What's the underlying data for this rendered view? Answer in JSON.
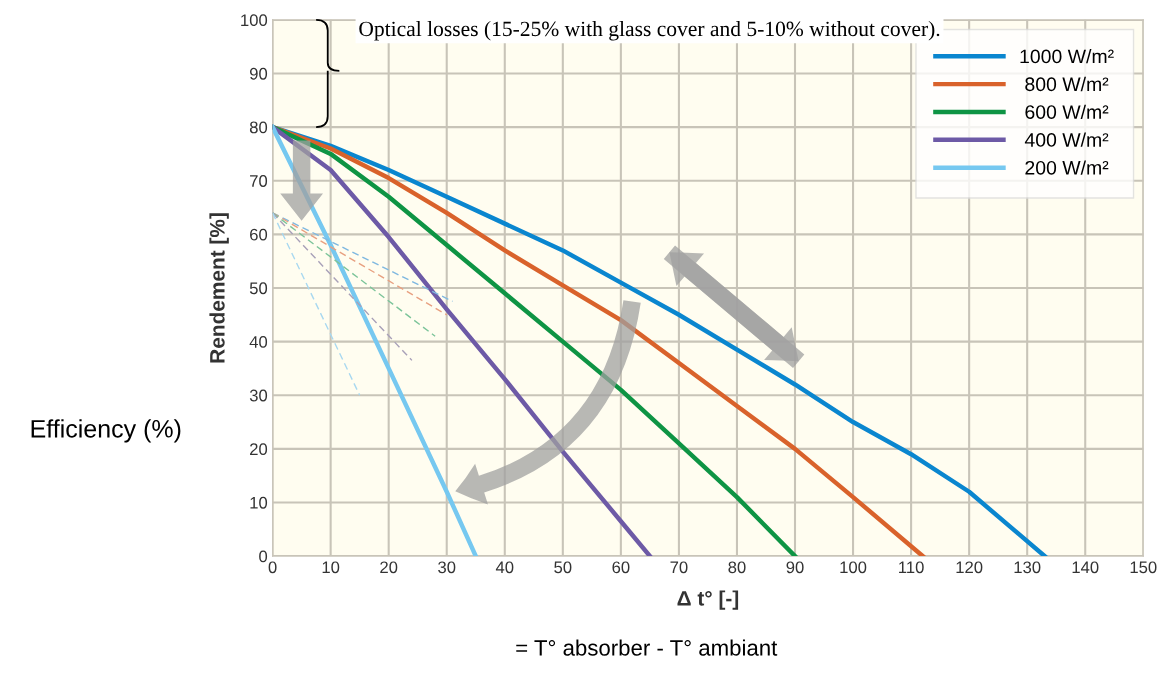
{
  "chart_data": {
    "type": "line",
    "xlabel": "Δ t° [-]",
    "ylabel": "Rendement [%]",
    "xlim": [
      0,
      150
    ],
    "ylim": [
      0,
      100
    ],
    "xticks": [
      0,
      10,
      20,
      30,
      40,
      50,
      60,
      70,
      80,
      90,
      100,
      110,
      120,
      130,
      140,
      150
    ],
    "yticks": [
      0,
      10,
      20,
      30,
      40,
      50,
      60,
      70,
      80,
      90,
      100
    ],
    "grid": true,
    "legend": "top right",
    "marker": "none",
    "line_style": "solid",
    "series": [
      {
        "name": "1000 W/m²",
        "color": "#0a86cf",
        "x": [
          0,
          10,
          20,
          30,
          40,
          50,
          60,
          70,
          80,
          90,
          100,
          110,
          120,
          133
        ],
        "values": [
          80,
          76.5,
          72,
          67,
          62,
          57,
          51,
          45,
          38.5,
          32,
          25,
          19,
          12,
          0
        ]
      },
      {
        "name": " 800 W/m²",
        "color": "#d9622b",
        "x": [
          0,
          10,
          20,
          30,
          40,
          50,
          60,
          70,
          80,
          90,
          100,
          112
        ],
        "values": [
          80,
          76,
          70.5,
          64,
          57,
          50.5,
          44,
          36,
          28,
          20,
          11,
          0
        ]
      },
      {
        "name": " 600 W/m²",
        "color": "#0e9444",
        "x": [
          0,
          10,
          20,
          30,
          40,
          50,
          60,
          70,
          80,
          90
        ],
        "values": [
          80,
          75,
          67,
          58,
          49,
          40,
          31,
          21,
          11,
          0
        ]
      },
      {
        "name": " 400 W/m²",
        "color": "#6d5aa6",
        "x": [
          0,
          10,
          20,
          30,
          40,
          50,
          60,
          65
        ],
        "values": [
          80,
          72,
          59.5,
          46,
          33,
          19.5,
          6.5,
          0
        ]
      },
      {
        "name": " 200 W/m²",
        "color": "#76c8f0",
        "x": [
          0,
          10,
          20,
          30,
          35
        ],
        "values": [
          80,
          58,
          35,
          12,
          0
        ]
      },
      {
        "color": "#7fb8e0",
        "line_style": "dashed",
        "x": [
          0,
          31
        ],
        "values": [
          64,
          47.5
        ]
      },
      {
        "color": "#e8a080",
        "line_style": "dashed",
        "x": [
          0,
          30
        ],
        "values": [
          64,
          45
        ]
      },
      {
        "color": "#7cc49a",
        "line_style": "dashed",
        "x": [
          0,
          28
        ],
        "values": [
          64,
          41
        ]
      },
      {
        "color": "#a8a0b8",
        "line_style": "dashed",
        "x": [
          0,
          24
        ],
        "values": [
          64,
          36.5
        ]
      },
      {
        "color": "#a8d8f0",
        "line_style": "dashed",
        "x": [
          0,
          15
        ],
        "values": [
          64,
          30
        ]
      }
    ],
    "annotations": [
      "Optical losses (15-25% with glass cover and 5-10% without cover).",
      "Efficiency (%)",
      "= T° absorber - T° ambiant"
    ]
  }
}
